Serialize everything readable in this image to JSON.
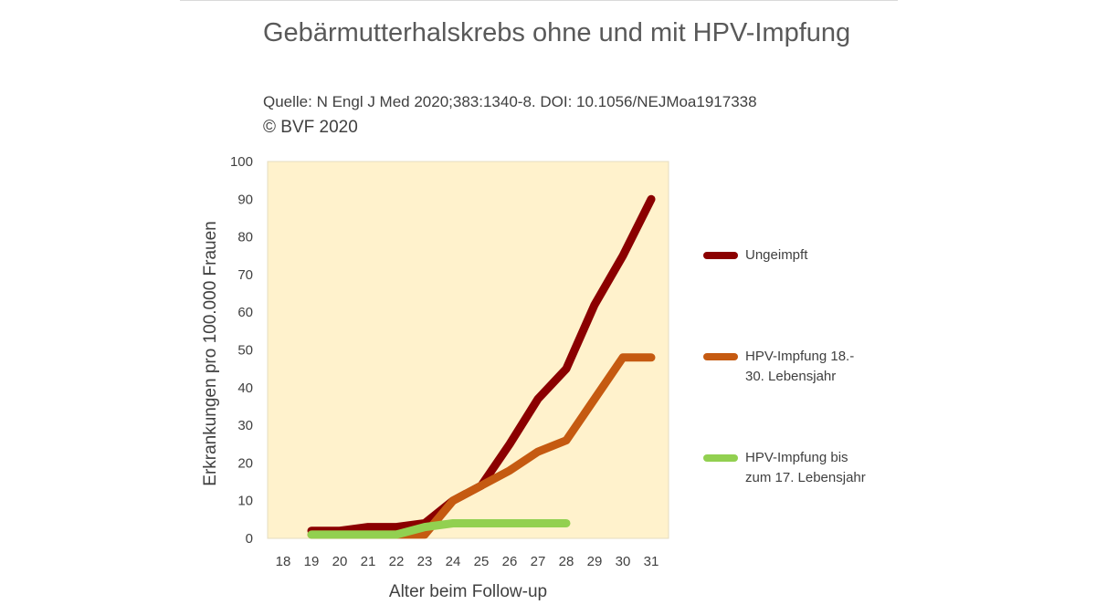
{
  "title": "Gebärmutterhalskrebs ohne und mit HPV-Impfung",
  "subtitle": "Quelle: N Engl J Med 2020;383:1340-8. DOI: 10.1056/NEJMoa1917338",
  "copyright": "© BVF 2020",
  "chart_data": {
    "type": "line",
    "title": "Gebärmutterhalskrebs ohne und mit HPV-Impfung",
    "xlabel": "Alter beim Follow-up",
    "ylabel": "Erkrankungen pro 100.000 Frauen",
    "categories": [
      "18",
      "19",
      "20",
      "21",
      "22",
      "23",
      "24",
      "25",
      "26",
      "27",
      "28",
      "29",
      "30",
      "31"
    ],
    "ylim": [
      0,
      100
    ],
    "yticks": [
      0,
      10,
      20,
      30,
      40,
      50,
      60,
      70,
      80,
      90,
      100
    ],
    "grid": false,
    "plot_background": "#fff2cc",
    "legend_position": "right",
    "series": [
      {
        "name": "Ungeimpft",
        "color": "#8b0000",
        "values": [
          null,
          2,
          2,
          3,
          3,
          4,
          10,
          14,
          25,
          37,
          45,
          62,
          75,
          90
        ]
      },
      {
        "name": "HPV-Impfung 18.-30. Lebensjahr",
        "color": "#c55a11",
        "values": [
          null,
          1,
          1,
          1,
          1,
          1,
          10,
          14,
          18,
          23,
          26,
          37,
          48,
          48
        ]
      },
      {
        "name": "HPV-Impfung bis zum 17. Lebensjahr",
        "color": "#92d050",
        "values": [
          null,
          1,
          1,
          1,
          1,
          3,
          4,
          4,
          4,
          4,
          4,
          null,
          null,
          null
        ]
      }
    ]
  },
  "legend": {
    "items": [
      {
        "label": "Ungeimpft",
        "color": "#8b0000"
      },
      {
        "label": "HPV-Impfung 18.-\n30. Lebensjahr",
        "color": "#c55a11"
      },
      {
        "label": "HPV-Impfung bis\nzum 17. Lebensjahr",
        "color": "#92d050"
      }
    ]
  }
}
